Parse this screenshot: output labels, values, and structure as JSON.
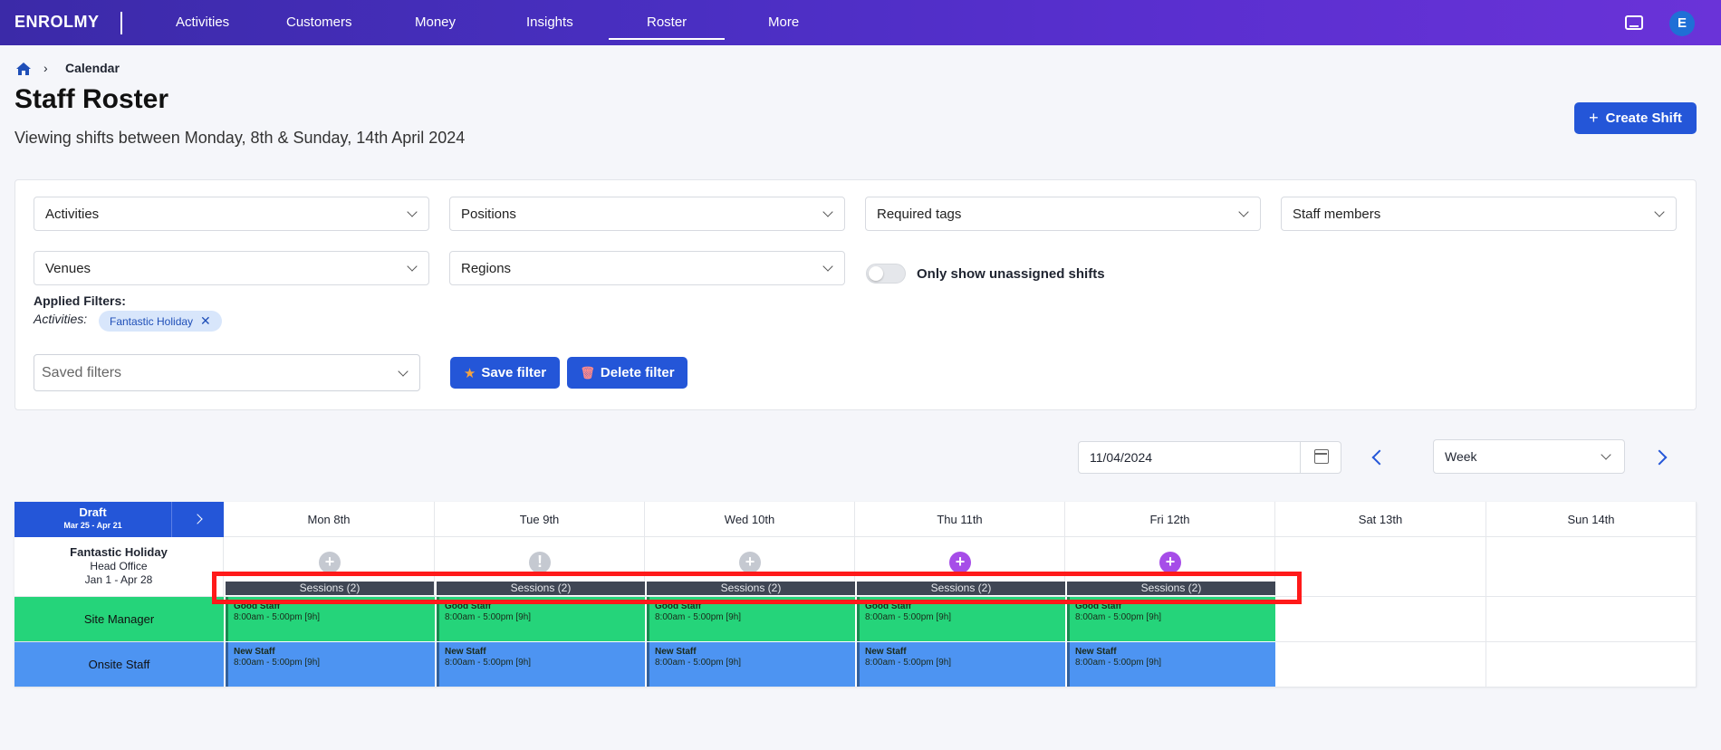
{
  "nav": {
    "logo": "ENROLMY",
    "items": [
      "Activities",
      "Customers",
      "Money",
      "Insights",
      "Roster",
      "More"
    ],
    "active": "Roster",
    "avatar_letter": "E"
  },
  "breadcrumb": {
    "current": "Calendar"
  },
  "header": {
    "title": "Staff Roster",
    "subtitle": "Viewing shifts between Monday, 8th & Sunday, 14th April 2024",
    "create_label": "Create Shift"
  },
  "filters": {
    "activities": "Activities",
    "positions": "Positions",
    "required_tags": "Required tags",
    "staff_members": "Staff members",
    "venues": "Venues",
    "regions": "Regions",
    "toggle_label": "Only show unassigned shifts",
    "applied_label": "Applied Filters:",
    "applied_activities_label": "Activities:",
    "applied_chip": "Fantastic Holiday",
    "saved_placeholder": "Saved filters",
    "save_label": "Save filter",
    "delete_label": "Delete filter"
  },
  "controls": {
    "date": "11/04/2024",
    "view": "Week"
  },
  "roster": {
    "draft_title": "Draft",
    "draft_range": "Mar 25 - Apr 21",
    "days": [
      "Mon 8th",
      "Tue 9th",
      "Wed 10th",
      "Thu 11th",
      "Fri 12th",
      "Sat 13th",
      "Sun 14th"
    ],
    "activity": {
      "name": "Fantastic Holiday",
      "venue": "Head Office",
      "dates": "Jan 1 - Apr 28"
    },
    "sessions_label": "Sessions (2)",
    "roles": [
      {
        "name": "Site Manager",
        "color": "#25d47a",
        "shift_name": "Good Staff",
        "shift_time": "8:00am - 5:00pm [9h]"
      },
      {
        "name": "Onsite Staff",
        "color": "#4d94f2",
        "shift_name": "New Staff",
        "shift_time": "8:00am - 5:00pm [9h]"
      }
    ]
  },
  "colors": {
    "primary": "#2456d8",
    "plus_grey": "#c5c9d1",
    "plus_purple": "#a64de8"
  }
}
